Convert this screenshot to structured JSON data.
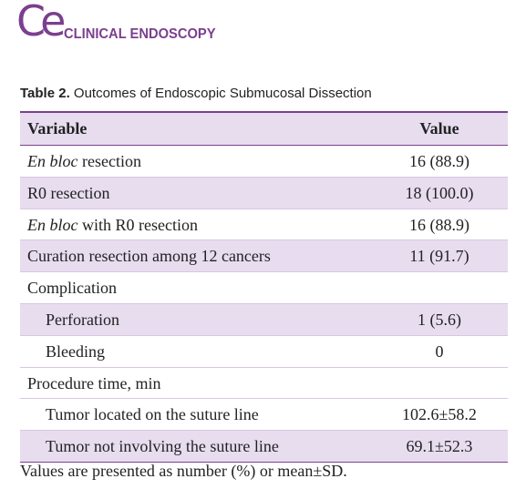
{
  "journal": {
    "mark": "Ce",
    "name": "CLINICAL ENDOSCOPY"
  },
  "caption": {
    "label": "Table 2.",
    "text": "Outcomes of Endoscopic Submucosal Dissection"
  },
  "table": {
    "header": [
      "Variable",
      "Value"
    ],
    "rows": [
      {
        "em": "En bloc",
        "label": "resection",
        "value": "16 (88.9)",
        "indent": false,
        "shaded": false
      },
      {
        "label": "R0 resection",
        "value": "18 (100.0)",
        "indent": false,
        "shaded": true
      },
      {
        "em": "En bloc",
        "label": "with R0 resection",
        "value": "16 (88.9)",
        "indent": false,
        "shaded": false
      },
      {
        "label": "Curation resection among 12 cancers",
        "value": "11 (91.7)",
        "indent": false,
        "shaded": true
      },
      {
        "label": "Complication",
        "value": null,
        "indent": false,
        "shaded": false
      },
      {
        "label": "Perforation",
        "value": "1 (5.6)",
        "indent": true,
        "shaded": true
      },
      {
        "label": "Bleeding",
        "value": "0",
        "indent": true,
        "shaded": false
      },
      {
        "label": "Procedure time, min",
        "value": null,
        "indent": false,
        "shaded": false
      },
      {
        "label": "Tumor located on the suture line",
        "value": "102.6±58.2",
        "indent": true,
        "shaded": false
      },
      {
        "label": "Tumor not involving the suture line",
        "value": "69.1±52.3",
        "indent": true,
        "shaded": true
      }
    ]
  },
  "footnote": "Values are presented as number (%) or mean±SD."
}
